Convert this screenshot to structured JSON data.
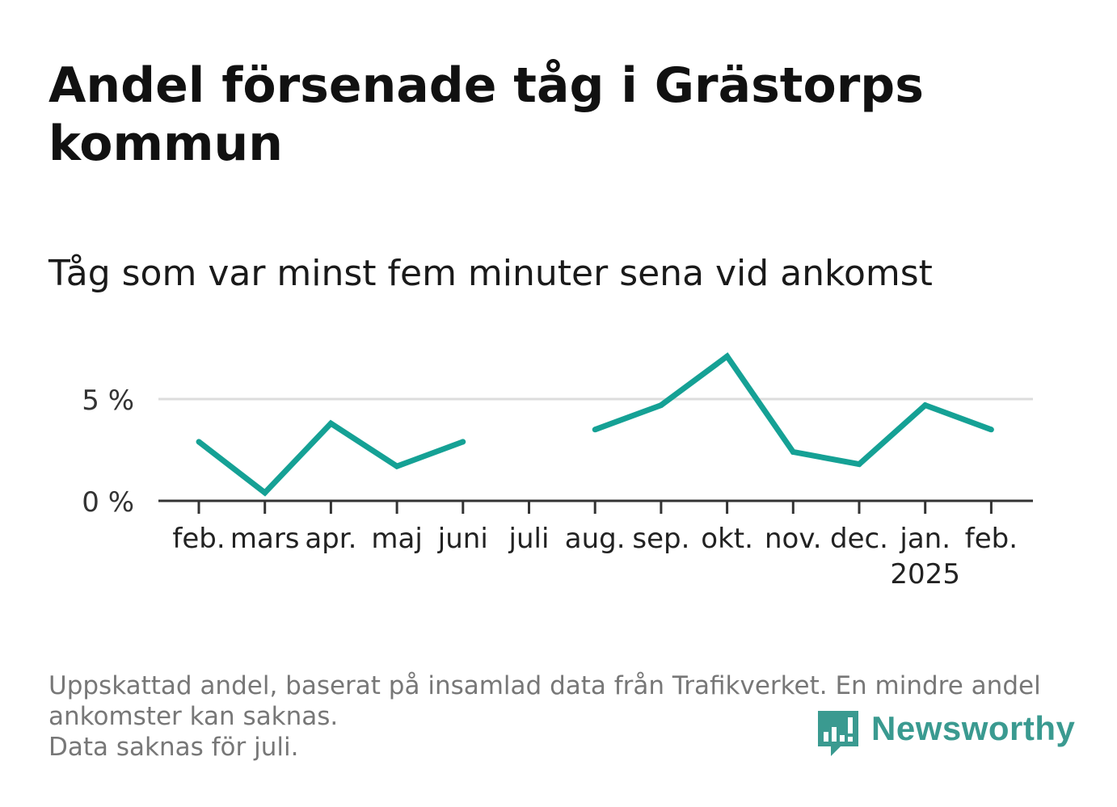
{
  "title": "Andel försenade tåg i Grästorps kommun",
  "subtitle": "Tåg som var minst fem minuter sena vid ankomst",
  "footnote": {
    "line1": "Uppskattad andel, baserat på insamlad data från Trafikverket. En mindre andel",
    "line2": "ankomster kan saknas.",
    "line3": "Data saknas för juli."
  },
  "logo": {
    "text": "Newsworthy"
  },
  "colors": {
    "line": "#15a195",
    "grid": "#dddddd",
    "axis": "#333333",
    "footnote": "#777777",
    "logo": "#3a9a90"
  },
  "chart_data": {
    "type": "line",
    "categories": [
      "feb.",
      "mars",
      "apr.",
      "maj",
      "juni",
      "juli",
      "aug.",
      "sep.",
      "okt.",
      "nov.",
      "dec.",
      "jan.",
      "feb."
    ],
    "year_labels": {
      "11": "2025"
    },
    "series": [
      {
        "values": [
          2.9,
          0.4,
          3.8,
          1.7,
          2.9,
          null,
          3.5,
          4.7,
          7.1,
          2.4,
          1.8,
          4.7,
          3.5
        ]
      }
    ],
    "ylim": [
      0,
      7.5
    ],
    "yticks": [
      0,
      5
    ],
    "ytick_labels": [
      "0 %",
      "5 %"
    ],
    "grid": true,
    "xlabel": "",
    "ylabel": ""
  }
}
